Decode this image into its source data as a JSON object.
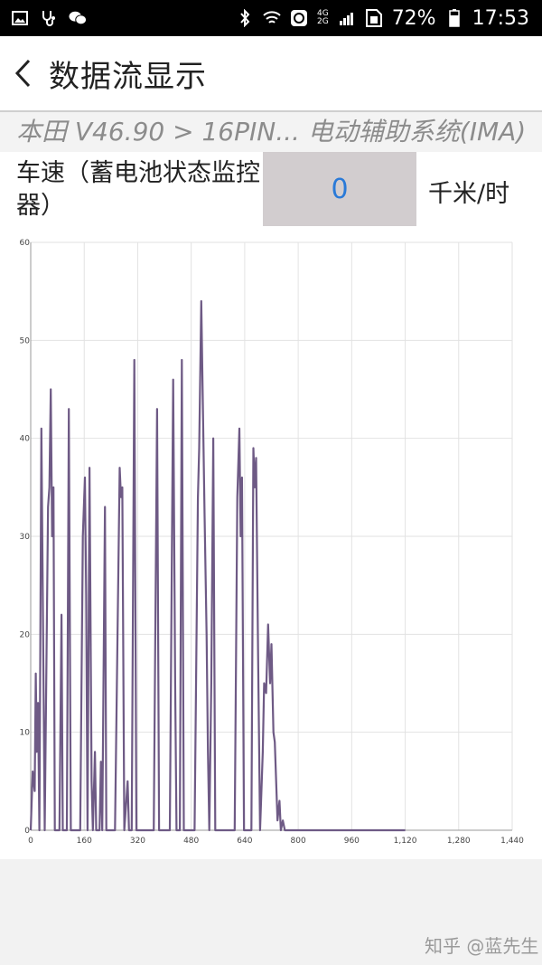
{
  "status_bar": {
    "network_label_top": "4G",
    "network_label_bottom": "2G",
    "battery_percent": "72%",
    "time": "17:53",
    "icons": [
      "gallery-icon",
      "stethoscope-icon",
      "wechat-icon",
      "bluetooth-icon",
      "wifi-icon",
      "sync-icon",
      "signal-icon",
      "sim-icon",
      "battery-icon"
    ]
  },
  "header": {
    "title": "数据流显示",
    "back_icon": "chevron-left-icon"
  },
  "breadcrumb": "本田 V46.90 > 16PIN... 电动辅助系统(IMA)",
  "pid": {
    "label": "车速（蓄电池状态监控器）",
    "value": "0",
    "unit": "千米/时"
  },
  "colors": {
    "line": "#6e5a85",
    "value_text": "#2a7ad8",
    "value_box": "#d2cdcf"
  },
  "chart_data": {
    "type": "line",
    "x_ticks": [
      "0",
      "160",
      "320",
      "480",
      "640",
      "800",
      "960",
      "1,120",
      "1,280",
      "1,440"
    ],
    "y_ticks": [
      "0",
      "10",
      "20",
      "30",
      "40",
      "50",
      "60"
    ],
    "xlim": [
      0,
      1440
    ],
    "ylim": [
      0,
      60
    ],
    "grid": true,
    "series": [
      {
        "points": [
          [
            0,
            0
          ],
          [
            6,
            6
          ],
          [
            12,
            4
          ],
          [
            15,
            16
          ],
          [
            18,
            8
          ],
          [
            22,
            13
          ],
          [
            26,
            0
          ],
          [
            32,
            41
          ],
          [
            38,
            16
          ],
          [
            42,
            0
          ],
          [
            52,
            33
          ],
          [
            56,
            35
          ],
          [
            60,
            45
          ],
          [
            64,
            30
          ],
          [
            68,
            35
          ],
          [
            72,
            0
          ],
          [
            86,
            0
          ],
          [
            92,
            22
          ],
          [
            96,
            0
          ],
          [
            108,
            0
          ],
          [
            114,
            43
          ],
          [
            120,
            0
          ],
          [
            148,
            0
          ],
          [
            156,
            30
          ],
          [
            162,
            36
          ],
          [
            166,
            24
          ],
          [
            170,
            0
          ],
          [
            176,
            37
          ],
          [
            182,
            5
          ],
          [
            186,
            0
          ],
          [
            192,
            8
          ],
          [
            196,
            0
          ],
          [
            206,
            0
          ],
          [
            210,
            7
          ],
          [
            214,
            0
          ],
          [
            222,
            33
          ],
          [
            226,
            0
          ],
          [
            252,
            0
          ],
          [
            266,
            37
          ],
          [
            270,
            34
          ],
          [
            274,
            35
          ],
          [
            280,
            0
          ],
          [
            290,
            5
          ],
          [
            294,
            0
          ],
          [
            302,
            0
          ],
          [
            310,
            48
          ],
          [
            316,
            0
          ],
          [
            368,
            0
          ],
          [
            378,
            43
          ],
          [
            384,
            0
          ],
          [
            416,
            0
          ],
          [
            426,
            46
          ],
          [
            432,
            15
          ],
          [
            436,
            0
          ],
          [
            446,
            0
          ],
          [
            452,
            48
          ],
          [
            458,
            0
          ],
          [
            490,
            0
          ],
          [
            500,
            34
          ],
          [
            504,
            39
          ],
          [
            510,
            54
          ],
          [
            514,
            45
          ],
          [
            520,
            32
          ],
          [
            526,
            20
          ],
          [
            530,
            8
          ],
          [
            534,
            0
          ],
          [
            540,
            15
          ],
          [
            546,
            40
          ],
          [
            552,
            0
          ],
          [
            610,
            0
          ],
          [
            618,
            34
          ],
          [
            624,
            41
          ],
          [
            628,
            30
          ],
          [
            632,
            36
          ],
          [
            638,
            0
          ],
          [
            660,
            0
          ],
          [
            666,
            39
          ],
          [
            670,
            35
          ],
          [
            674,
            38
          ],
          [
            680,
            18
          ],
          [
            686,
            0
          ],
          [
            694,
            8
          ],
          [
            698,
            15
          ],
          [
            704,
            14
          ],
          [
            710,
            21
          ],
          [
            716,
            15
          ],
          [
            720,
            19
          ],
          [
            726,
            10
          ],
          [
            730,
            9
          ],
          [
            738,
            1
          ],
          [
            744,
            3
          ],
          [
            748,
            0
          ],
          [
            754,
            1
          ],
          [
            760,
            0
          ],
          [
            1120,
            0
          ]
        ]
      }
    ]
  },
  "footer": {
    "watermark": "知乎 @蓝先生"
  }
}
